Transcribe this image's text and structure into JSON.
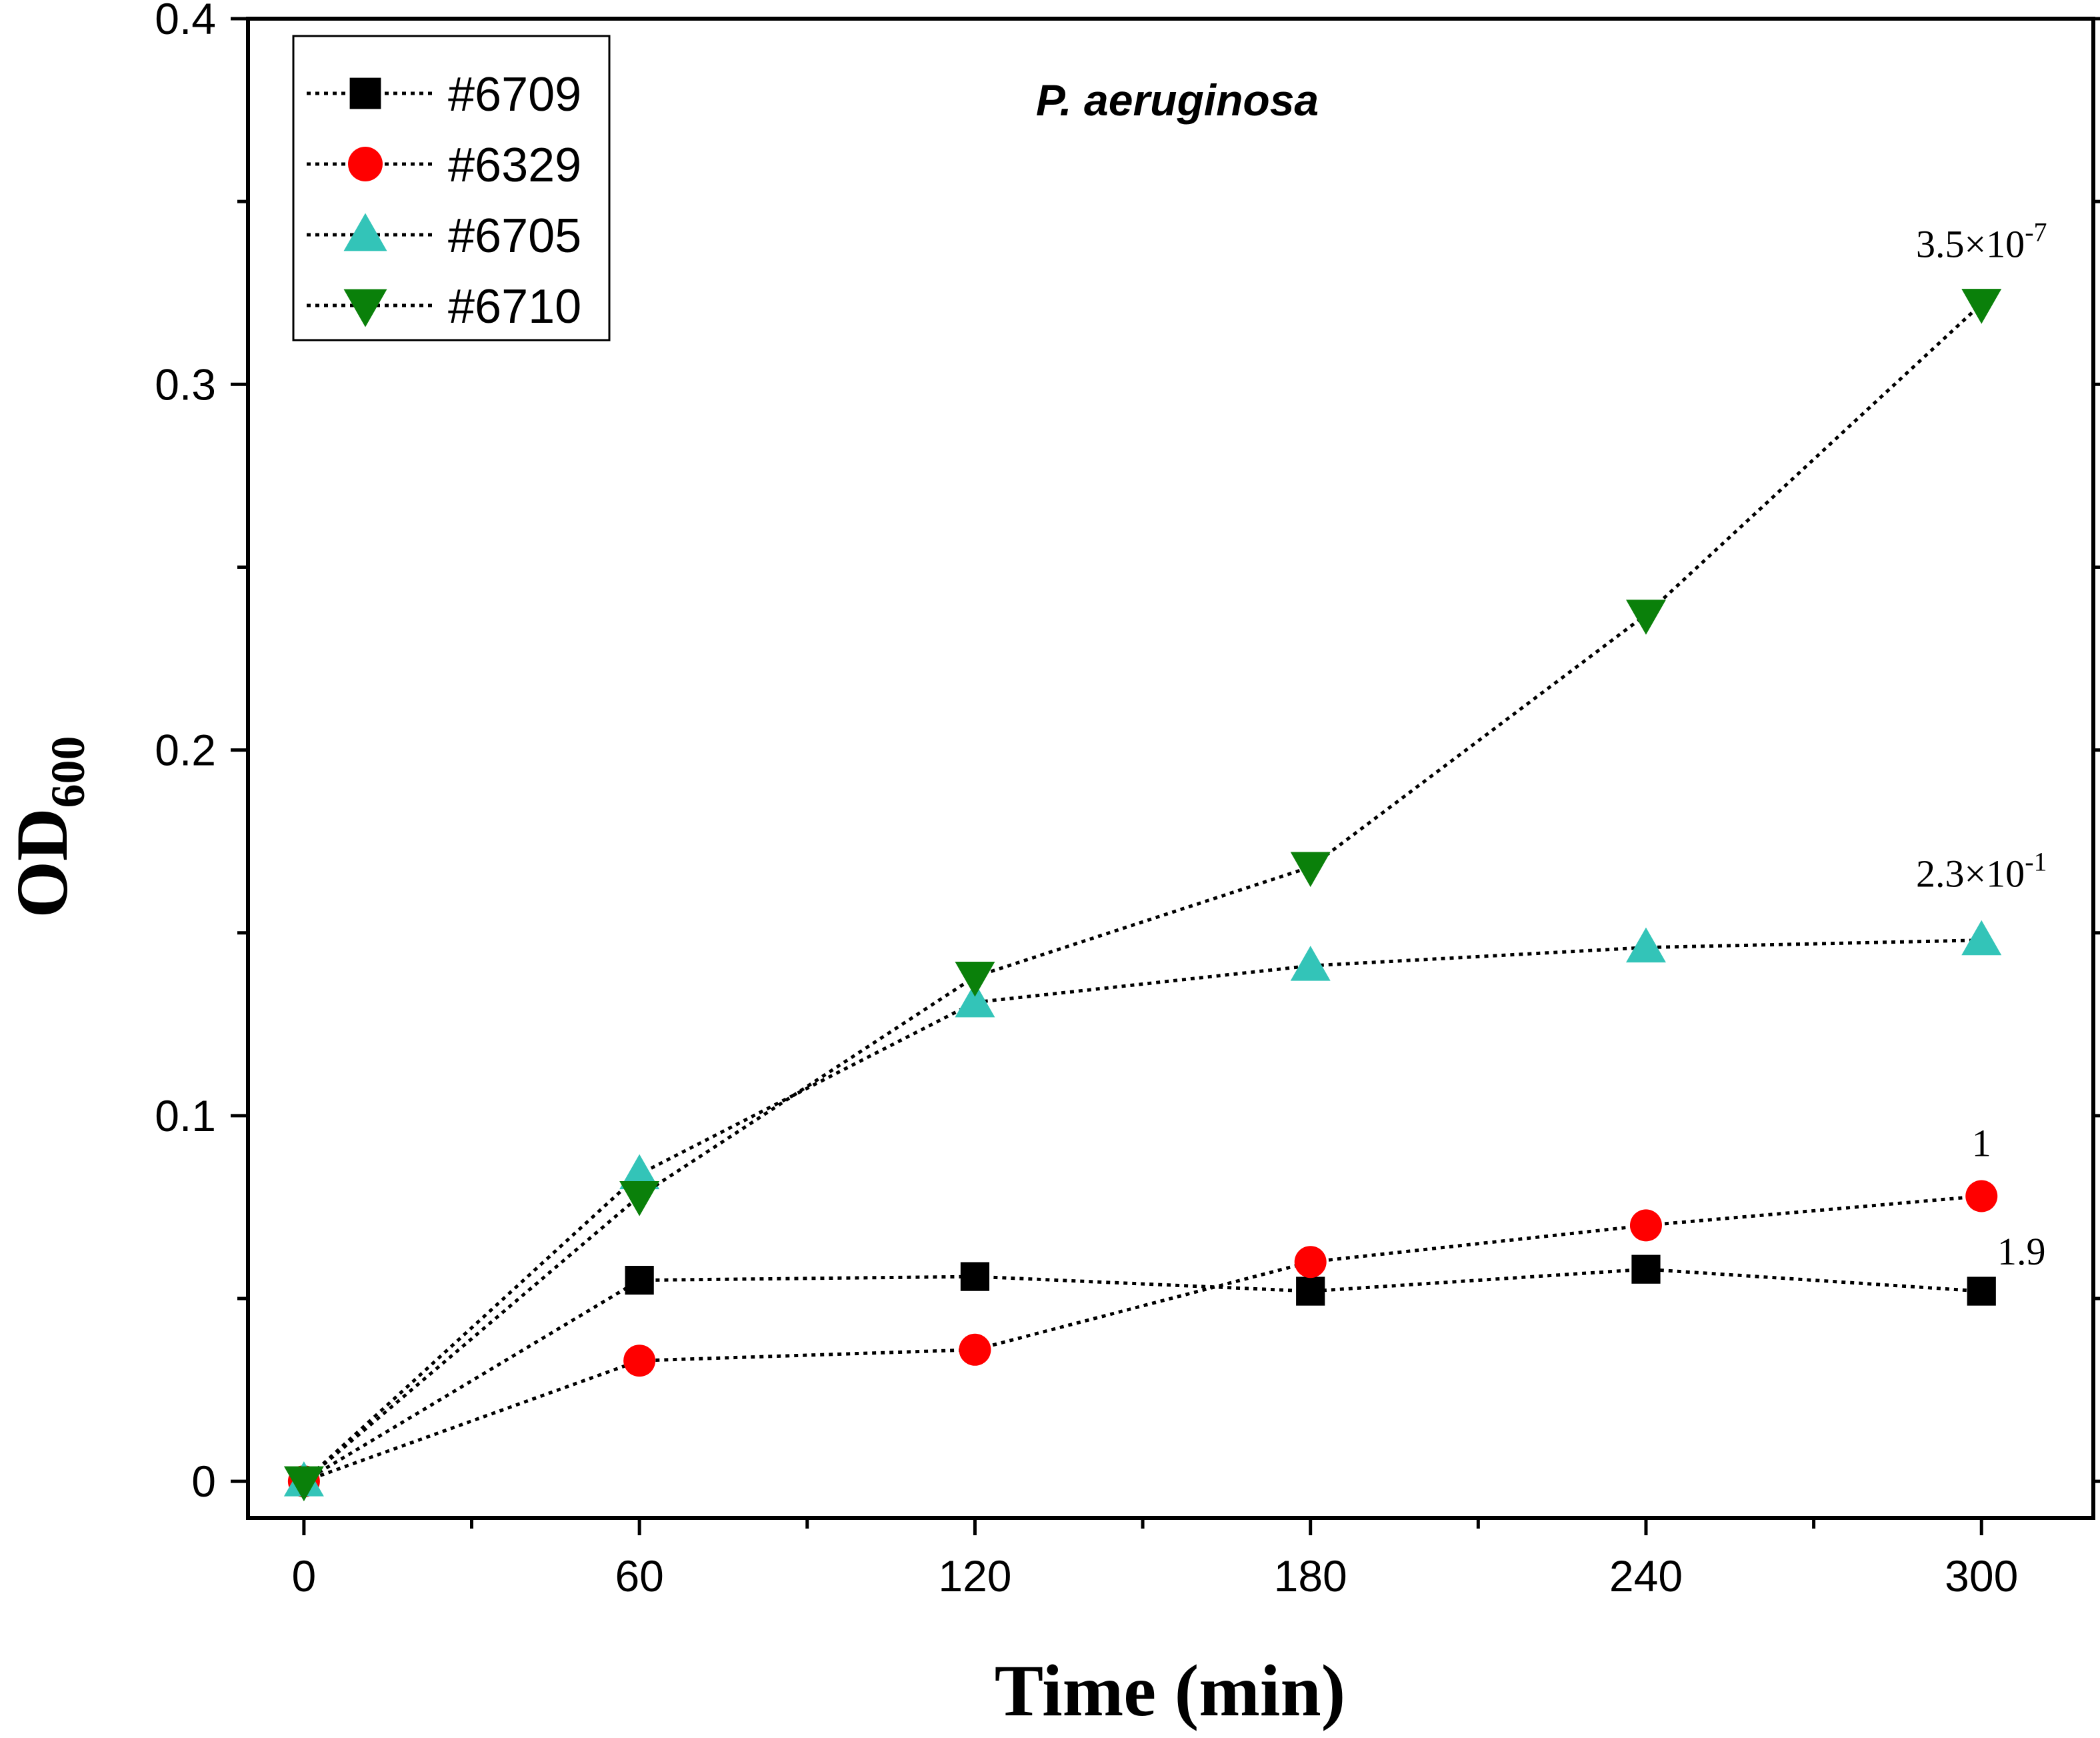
{
  "chart_data": {
    "type": "line",
    "title": "P. aeruginosa",
    "xlabel": "Time (min)",
    "ylabel_main": "OD",
    "ylabel_sub": "600",
    "x": [
      0,
      60,
      120,
      180,
      240,
      300
    ],
    "xlim": [
      -10,
      320
    ],
    "ylim": [
      -0.01,
      0.4
    ],
    "xticks": [
      0,
      60,
      120,
      180,
      240,
      300
    ],
    "yticks": [
      0,
      0.1,
      0.2,
      0.3,
      0.4
    ],
    "xtick_labels": [
      "0",
      "60",
      "120",
      "180",
      "240",
      "300"
    ],
    "ytick_labels": [
      "0",
      "0.1",
      "0.2",
      "0.3",
      "0.4"
    ],
    "legend_position": "top-left",
    "series": [
      {
        "name": "#6709",
        "marker": "square",
        "color": "#000000",
        "values": [
          0,
          0.055,
          0.056,
          0.052,
          0.058,
          0.052
        ]
      },
      {
        "name": "#6329",
        "marker": "circle",
        "color": "#ff0000",
        "values": [
          0,
          0.033,
          0.036,
          0.06,
          0.07,
          0.078
        ]
      },
      {
        "name": "#6705",
        "marker": "triangle-up",
        "color": "#33c4b8",
        "values": [
          0,
          0.084,
          0.131,
          0.141,
          0.146,
          0.148
        ]
      },
      {
        "name": "#6710",
        "marker": "triangle-down",
        "color": "#0a800a",
        "values": [
          0,
          0.078,
          0.138,
          0.168,
          0.237,
          0.322
        ]
      }
    ],
    "annotations": [
      {
        "series": "#6710",
        "mantissa": "3.5×10",
        "exponent": "-7"
      },
      {
        "series": "#6705",
        "mantissa": "2.3×10",
        "exponent": "-1"
      },
      {
        "series": "#6329",
        "mantissa": "1",
        "exponent": ""
      },
      {
        "series": "#6709",
        "mantissa": "1.9",
        "exponent": ""
      }
    ]
  }
}
